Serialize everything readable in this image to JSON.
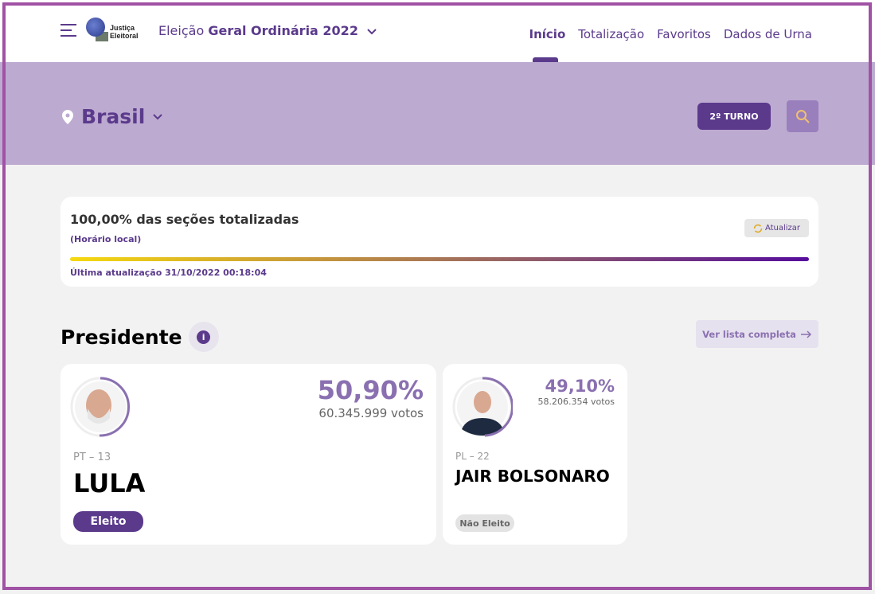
{
  "header": {
    "logo_text": [
      "Justiça",
      "Eleitoral"
    ],
    "election_prefix": "Eleição",
    "election_name": "Geral Ordinária 2022",
    "nav": [
      "Início",
      "Totalização",
      "Favoritos",
      "Dados de Urna"
    ]
  },
  "location": {
    "name": "Brasil",
    "turno_button": "2º TURNO"
  },
  "progress": {
    "title": "100,00% das seções totalizadas",
    "subtitle": "(Horário local)",
    "percent": 100,
    "updated": "Última atualização 31/10/2022 00:18:04",
    "refresh_label": "Atualizar"
  },
  "section": {
    "title": "Presidente",
    "info": "i",
    "view_all": "Ver lista completa"
  },
  "candidates": [
    {
      "party": "PT – 13",
      "name": "LULA",
      "percent": "50,90%",
      "share": 50.9,
      "votes": "60.345.999 votos",
      "status": "Eleito"
    },
    {
      "party": "PL – 22",
      "name": "JAIR BOLSONARO",
      "percent": "49,10%",
      "share": 49.1,
      "votes": "58.206.354 votos",
      "status": "Não Eleito"
    }
  ],
  "colors": {
    "brand": "#5b3a8c",
    "accent": "#8a70b0",
    "banner": "#bcaad0"
  }
}
